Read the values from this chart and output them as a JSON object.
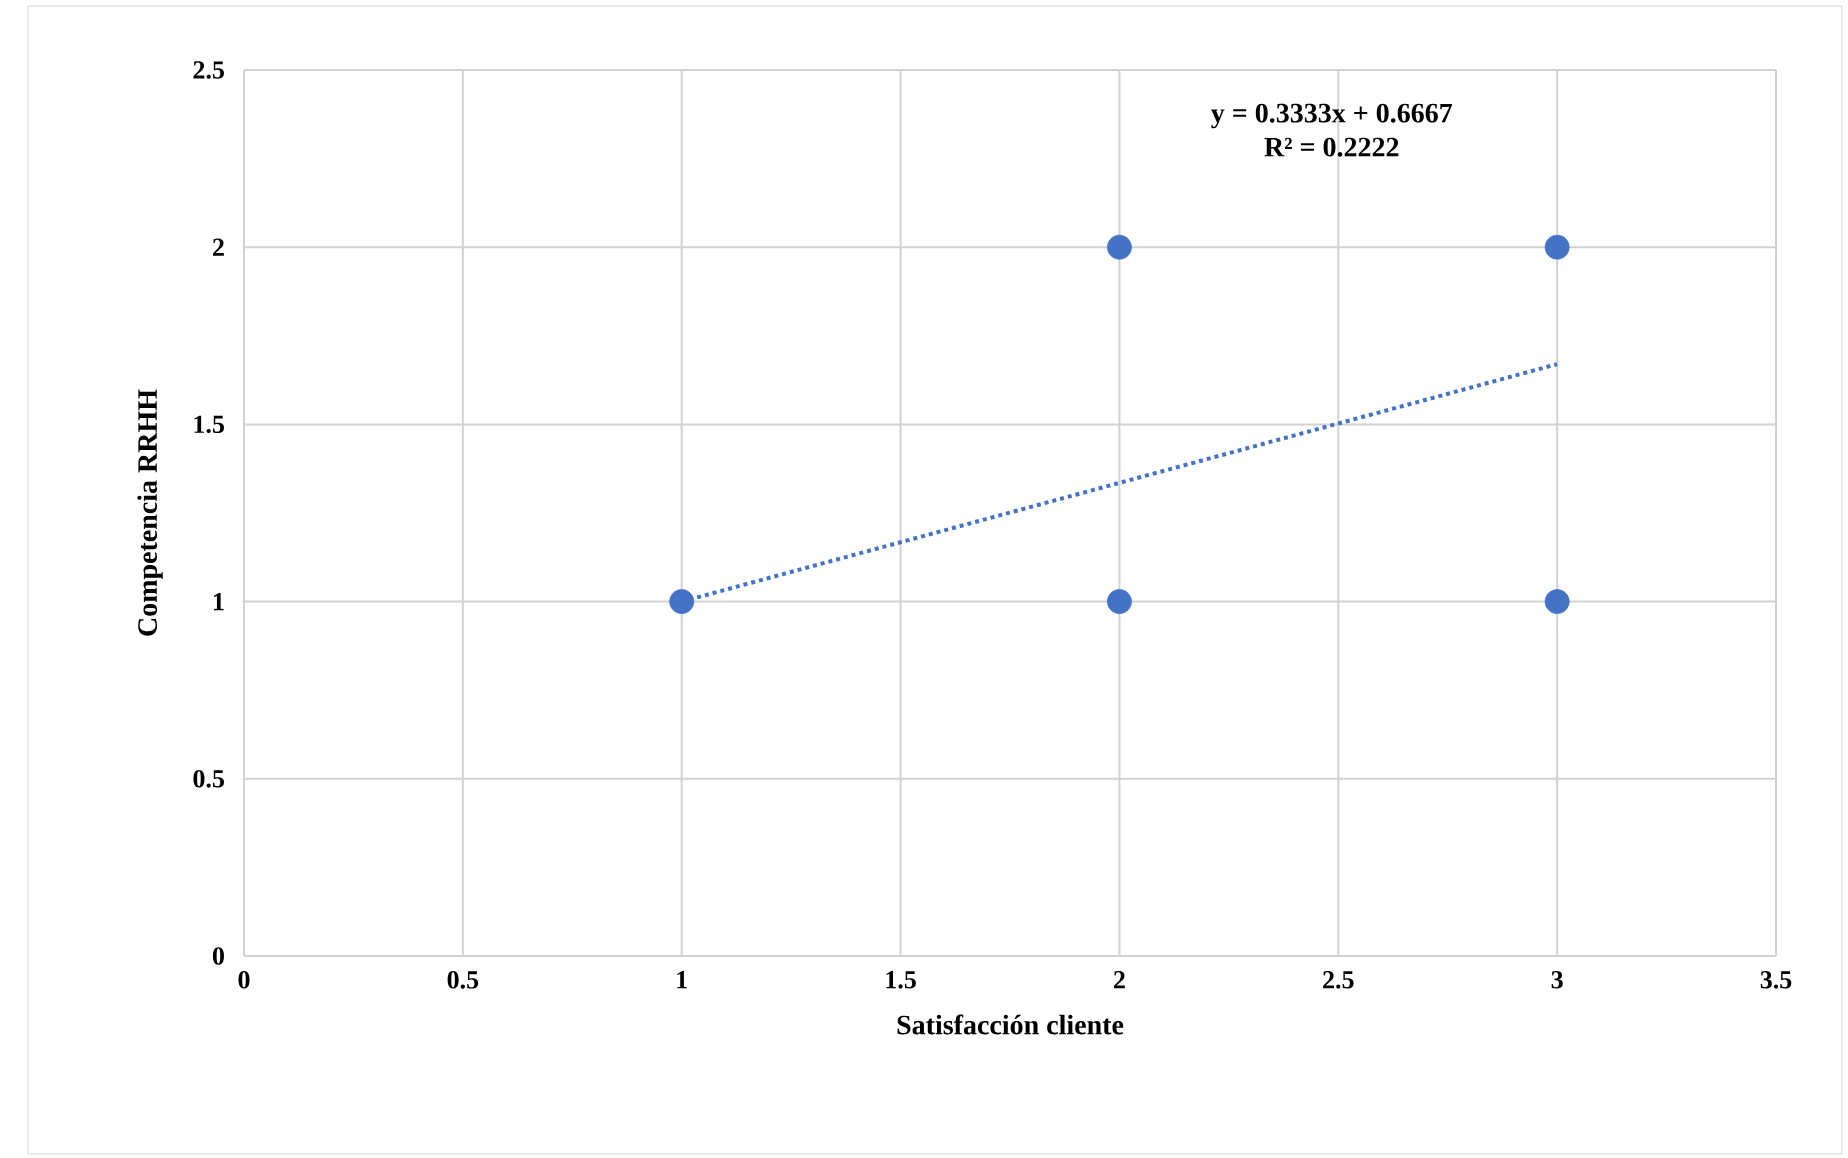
{
  "chart_data": {
    "type": "scatter",
    "xlabel": "Satisfacción cliente",
    "ylabel": "Competencia RRHH",
    "annotations": [
      "y = 0.3333x + 0.6667",
      "R² = 0.2222"
    ],
    "xlim": [
      0,
      3.5
    ],
    "xticks": [
      0,
      0.5,
      1,
      1.5,
      2,
      2.5,
      3,
      3.5
    ],
    "ylim": [
      0,
      2.5
    ],
    "yticks": [
      0,
      0.5,
      1,
      1.5,
      2,
      2.5
    ],
    "grid": true,
    "marker": "circle",
    "series": [
      {
        "color": "#4472c4",
        "x": [
          1,
          2,
          2,
          3,
          3
        ],
        "values": [
          1,
          2,
          1,
          2,
          1
        ]
      },
      {
        "type": "line",
        "color": "#4472c4",
        "x": [
          1,
          3
        ],
        "values": [
          1,
          1.67
        ],
        "marker": "none",
        "line_style": "dotted"
      }
    ]
  }
}
